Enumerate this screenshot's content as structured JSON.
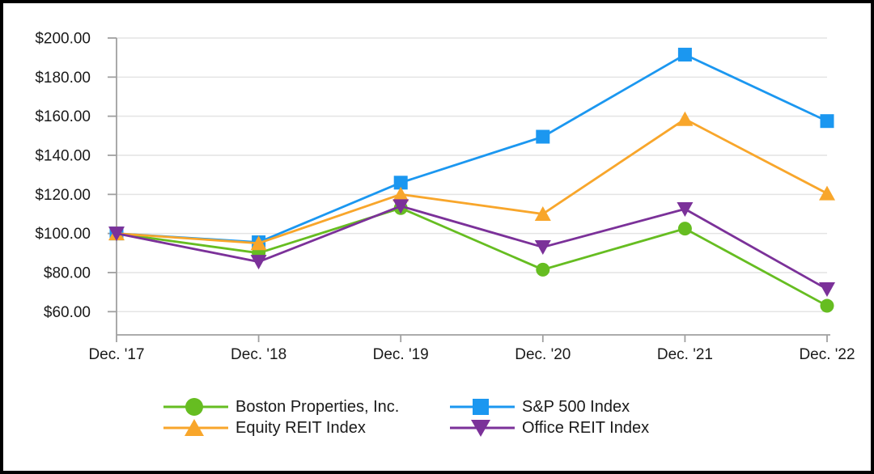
{
  "chart_data": {
    "type": "line",
    "title": "",
    "xlabel": "",
    "ylabel": "",
    "categories": [
      "Dec. '17",
      "Dec. '18",
      "Dec. '19",
      "Dec. '20",
      "Dec. '21",
      "Dec. '22"
    ],
    "series": [
      {
        "name": "Boston Properties, Inc.",
        "marker": "circle",
        "color": "#66BD21",
        "values": [
          100.0,
          90.0,
          113.0,
          81.5,
          102.5,
          63.0
        ]
      },
      {
        "name": "S&P 500 Index",
        "marker": "square",
        "color": "#1B97F0",
        "values": [
          100.0,
          95.5,
          126.0,
          149.5,
          191.5,
          157.5
        ]
      },
      {
        "name": "Equity REIT Index",
        "marker": "triangle-up",
        "color": "#F8A62B",
        "values": [
          100.0,
          95.0,
          120.0,
          110.0,
          158.5,
          120.5
        ]
      },
      {
        "name": "Office REIT Index",
        "marker": "triangle-down",
        "color": "#7B3199",
        "values": [
          100.0,
          85.5,
          114.0,
          93.0,
          112.5,
          71.5
        ]
      }
    ],
    "y_ticks": [
      200,
      180,
      160,
      140,
      120,
      100,
      80,
      60
    ],
    "y_tick_labels": [
      "$200.00",
      "$180.00",
      "$160.00",
      "$140.00",
      "$120.00",
      "$100.00",
      "$80.00",
      "$60.00"
    ],
    "ylim": [
      60,
      200
    ],
    "grid": true,
    "legend_position": "bottom",
    "colors": {
      "gridline": "#E4E4E4",
      "axis": "#A0A0A0",
      "text": "#1A1A1A",
      "frame": "#000000",
      "background": "#FFFFFF"
    }
  }
}
